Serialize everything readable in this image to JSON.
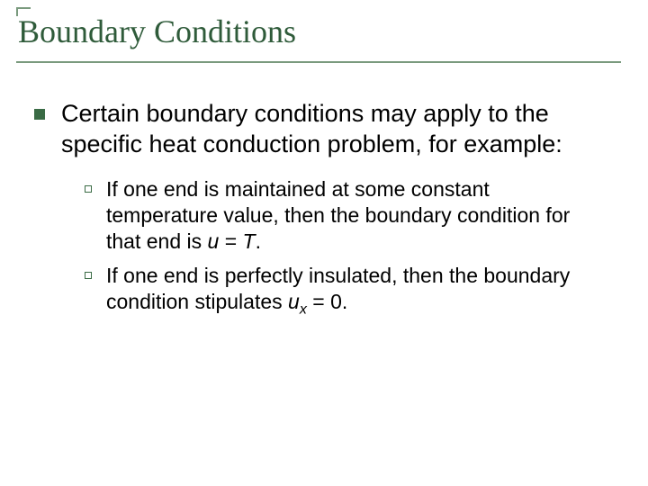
{
  "slide": {
    "title": "Boundary Conditions",
    "title_color": "#2f5b3a",
    "underline_color": "#7a9a7e",
    "bullet_color": "#3a6b45",
    "background_color": "#ffffff",
    "body_fontsize_lvl1": 27,
    "body_fontsize_lvl2": 23,
    "title_fontsize": 36,
    "lvl1": {
      "text": "Certain boundary conditions may apply to the specific heat conduction problem, for example:"
    },
    "lvl2": [
      {
        "prefix": "If one end is maintained at some constant temperature value, then the boundary condition for that end is ",
        "var": "u",
        "eq": " = ",
        "rhs": "T",
        "suffix": "."
      },
      {
        "prefix": "If one end is perfectly insulated, then the boundary condition stipulates ",
        "var": "u",
        "sub": "x",
        "eq": " = 0.",
        "rhs": "",
        "suffix": ""
      }
    ]
  }
}
